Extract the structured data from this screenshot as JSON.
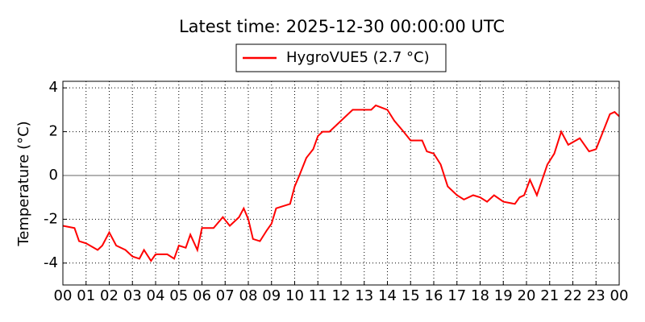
{
  "chart_data": {
    "type": "line",
    "title": "Latest time: 2025-12-30 00:00:00 UTC",
    "ylabel": "Temperature (°C)",
    "x": [
      0,
      0.5,
      0.7,
      1,
      1.5,
      1.7,
      2,
      2.3,
      2.7,
      3,
      3.3,
      3.5,
      3.8,
      4,
      4.5,
      4.8,
      5,
      5.3,
      5.5,
      5.8,
      6,
      6.5,
      6.9,
      7.2,
      7.6,
      7.8,
      8,
      8.2,
      8.5,
      8.8,
      9,
      9.2,
      9.5,
      9.8,
      10,
      10.2,
      10.5,
      10.8,
      11,
      11.2,
      11.5,
      12,
      12.5,
      13,
      13.3,
      13.5,
      14,
      14.3,
      14.7,
      15,
      15.5,
      15.7,
      16,
      16.3,
      16.6,
      17,
      17.3,
      17.7,
      18,
      18.3,
      18.6,
      19,
      19.5,
      19.7,
      19.9,
      20.15,
      20.45,
      20.9,
      21.2,
      21.5,
      21.8,
      22.3,
      22.7,
      23,
      23.3,
      23.6,
      23.8,
      24
    ],
    "series": [
      {
        "name": "HygroVUE5 (2.7 °C)",
        "color": "#ff0000",
        "values": [
          -2.3,
          -2.4,
          -3.0,
          -3.1,
          -3.4,
          -3.2,
          -2.6,
          -3.2,
          -3.4,
          -3.7,
          -3.8,
          -3.4,
          -3.9,
          -3.6,
          -3.6,
          -3.8,
          -3.2,
          -3.3,
          -2.7,
          -3.4,
          -2.4,
          -2.4,
          -1.9,
          -2.3,
          -1.9,
          -1.5,
          -2.0,
          -2.9,
          -3.0,
          -2.5,
          -2.2,
          -1.5,
          -1.4,
          -1.3,
          -0.5,
          0,
          0.8,
          1.2,
          1.8,
          2.0,
          2.0,
          2.5,
          3.0,
          3.0,
          3.0,
          3.2,
          3.0,
          2.5,
          2.0,
          1.6,
          1.6,
          1.1,
          1.0,
          0.5,
          -0.5,
          -0.9,
          -1.1,
          -0.9,
          -1.0,
          -1.2,
          -0.9,
          -1.2,
          -1.3,
          -1.0,
          -0.9,
          -0.2,
          -0.9,
          0.5,
          1.0,
          2.0,
          1.4,
          1.7,
          1.1,
          1.2,
          2.0,
          2.8,
          2.9,
          2.7
        ]
      }
    ],
    "xlim": [
      0,
      24
    ],
    "xticks": [
      {
        "value": 0,
        "label": "00"
      },
      {
        "value": 1,
        "label": "01"
      },
      {
        "value": 2,
        "label": "02"
      },
      {
        "value": 3,
        "label": "03"
      },
      {
        "value": 4,
        "label": "04"
      },
      {
        "value": 5,
        "label": "05"
      },
      {
        "value": 6,
        "label": "06"
      },
      {
        "value": 7,
        "label": "07"
      },
      {
        "value": 8,
        "label": "08"
      },
      {
        "value": 9,
        "label": "09"
      },
      {
        "value": 10,
        "label": "10"
      },
      {
        "value": 11,
        "label": "11"
      },
      {
        "value": 12,
        "label": "12"
      },
      {
        "value": 13,
        "label": "13"
      },
      {
        "value": 14,
        "label": "14"
      },
      {
        "value": 15,
        "label": "15"
      },
      {
        "value": 16,
        "label": "16"
      },
      {
        "value": 17,
        "label": "17"
      },
      {
        "value": 18,
        "label": "18"
      },
      {
        "value": 19,
        "label": "19"
      },
      {
        "value": 20,
        "label": "20"
      },
      {
        "value": 21,
        "label": "21"
      },
      {
        "value": 22,
        "label": "22"
      },
      {
        "value": 23,
        "label": "23"
      },
      {
        "value": 24,
        "label": "00"
      }
    ],
    "ylim": [
      -5,
      4.3
    ],
    "yticks": [
      -4,
      -2,
      0,
      2,
      4
    ],
    "grid": true,
    "legend": "top"
  }
}
